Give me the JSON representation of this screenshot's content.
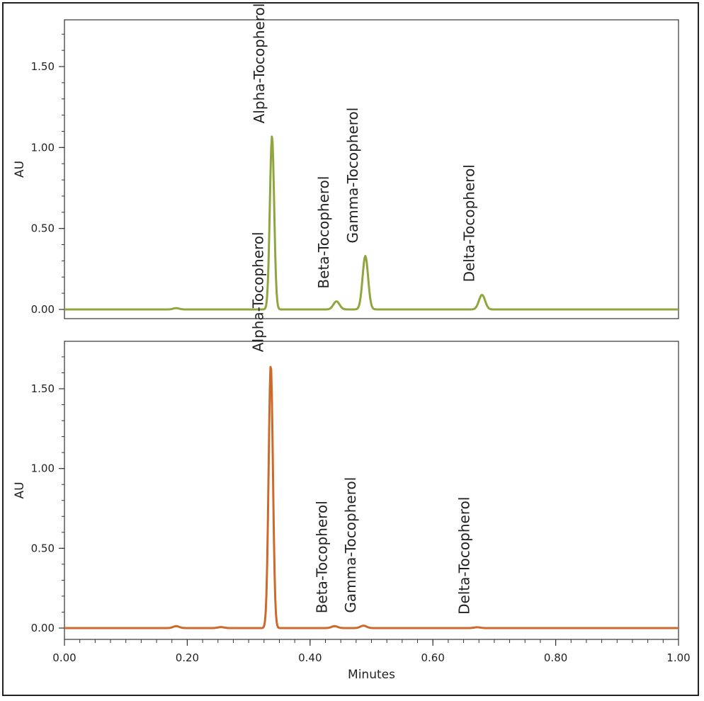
{
  "chart_data": [
    {
      "type": "line",
      "title": "",
      "xlabel": "",
      "ylabel": "AU",
      "xlim": [
        0.0,
        1.0
      ],
      "ylim": [
        -0.05,
        1.8
      ],
      "yticks": [
        0.0,
        0.5,
        1.0,
        1.5
      ],
      "ytick_labels": [
        "0.00",
        "0.50",
        "1.00",
        "1.50"
      ],
      "grid": false,
      "color": "#8fa63f",
      "series": [
        {
          "baseline": 0.0,
          "peaks": [
            {
              "x": 0.182,
              "y": 0.008
            },
            {
              "x": 0.338,
              "y": 1.07
            },
            {
              "x": 0.443,
              "y": 0.05
            },
            {
              "x": 0.49,
              "y": 0.33
            },
            {
              "x": 0.68,
              "y": 0.09
            }
          ]
        }
      ],
      "annotations": [
        {
          "text": "Alpha-Tocopherol",
          "x": 0.338,
          "y": 1.07
        },
        {
          "text": "Beta-Tocopherol",
          "x": 0.443,
          "y": 0.05
        },
        {
          "text": "Gamma-Tocopherol",
          "x": 0.49,
          "y": 0.33
        },
        {
          "text": "Delta-Tocopherol",
          "x": 0.68,
          "y": 0.09
        }
      ]
    },
    {
      "type": "line",
      "title": "",
      "xlabel": "Minutes",
      "ylabel": "AU",
      "xlim": [
        0.0,
        1.0
      ],
      "ylim": [
        -0.05,
        1.8
      ],
      "yticks": [
        0.0,
        0.5,
        1.0,
        1.5
      ],
      "ytick_labels": [
        "0.00",
        "0.50",
        "1.00",
        "1.50"
      ],
      "xticks": [
        0.0,
        0.2,
        0.4,
        0.6,
        0.8,
        1.0
      ],
      "xtick_labels": [
        "0.00",
        "0.20",
        "0.40",
        "0.60",
        "0.80",
        "1.00"
      ],
      "grid": false,
      "color": "#cc6a2c",
      "series": [
        {
          "baseline": 0.0,
          "peaks": [
            {
              "x": 0.182,
              "y": 0.012
            },
            {
              "x": 0.255,
              "y": 0.006
            },
            {
              "x": 0.336,
              "y": 1.65
            },
            {
              "x": 0.44,
              "y": 0.012
            },
            {
              "x": 0.487,
              "y": 0.015
            },
            {
              "x": 0.672,
              "y": 0.005
            }
          ]
        }
      ],
      "annotations": [
        {
          "text": "Alpha-Tocopherol",
          "x": 0.336,
          "y": 1.65
        },
        {
          "text": "Beta-Tocopherol",
          "x": 0.44,
          "y": 0.012
        },
        {
          "text": "Gamma-Tocopherol",
          "x": 0.487,
          "y": 0.015
        },
        {
          "text": "Delta-Tocopherol",
          "x": 0.672,
          "y": 0.005
        }
      ]
    }
  ]
}
